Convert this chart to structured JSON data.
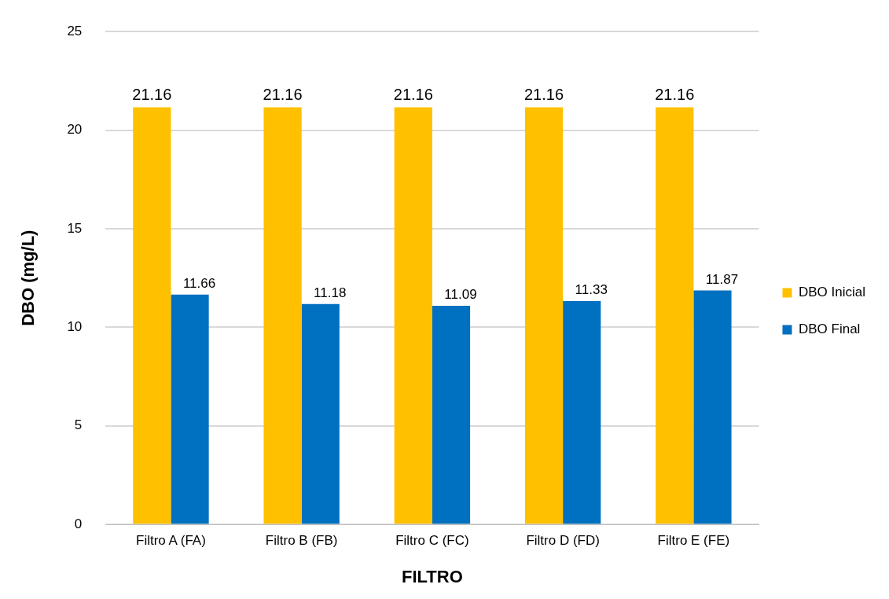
{
  "chart_data": {
    "type": "bar",
    "xlabel": "FILTRO",
    "ylabel": "DBO (mg/L)",
    "categories": [
      "Filtro A (FA)",
      "Filtro B (FB)",
      "Filtro C (FC)",
      "Filtro D (FD)",
      "Filtro E (FE)"
    ],
    "series": [
      {
        "name": "DBO Inicial",
        "color": "#ffc000",
        "values": [
          21.16,
          21.16,
          21.16,
          21.16,
          21.16
        ]
      },
      {
        "name": "DBO Final",
        "color": "#0070c0",
        "values": [
          11.66,
          11.18,
          11.09,
          11.33,
          11.87
        ]
      }
    ],
    "ylim": [
      0,
      25
    ],
    "yticks": [
      0,
      5,
      10,
      15,
      20,
      25
    ],
    "grid": "y",
    "legend": "right",
    "data_labels": true
  }
}
